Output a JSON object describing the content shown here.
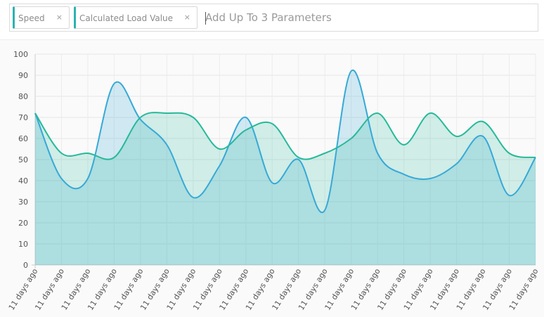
{
  "parameter_bar": {
    "chips": [
      {
        "label": "Speed",
        "remove": "×"
      },
      {
        "label": "Calculated Load Value",
        "remove": "×"
      }
    ],
    "placeholder": "Add Up To 3 Parameters"
  },
  "chart_data": {
    "type": "area",
    "categories": [
      "11 days ago",
      "11 days ago",
      "11 days ago",
      "11 days ago",
      "11 days ago",
      "11 days ago",
      "11 days ago",
      "11 days ago",
      "11 days ago",
      "11 days ago",
      "11 days ago",
      "11 days ago",
      "11 days ago",
      "11 days ago",
      "11 days ago",
      "11 days ago",
      "11 days ago",
      "11 days ago",
      "11 days ago",
      "11 days ago"
    ],
    "series": [
      {
        "name": "Speed",
        "color": "#36a9d6",
        "values": [
          72,
          41,
          41,
          86,
          69,
          57,
          32,
          47,
          70,
          39,
          50,
          26,
          92,
          53,
          43,
          41,
          48,
          61,
          33,
          51
        ]
      },
      {
        "name": "Calculated Load Value",
        "color": "#26b99a",
        "values": [
          72,
          53,
          53,
          51,
          70,
          72,
          70,
          55,
          64,
          67,
          51,
          53,
          60,
          72,
          57,
          72,
          61,
          68,
          53,
          51
        ]
      }
    ],
    "ylim": [
      0,
      100
    ],
    "yticks": [
      0,
      10,
      20,
      30,
      40,
      50,
      60,
      70,
      80,
      90,
      100
    ],
    "grid": true,
    "legend": "none"
  }
}
